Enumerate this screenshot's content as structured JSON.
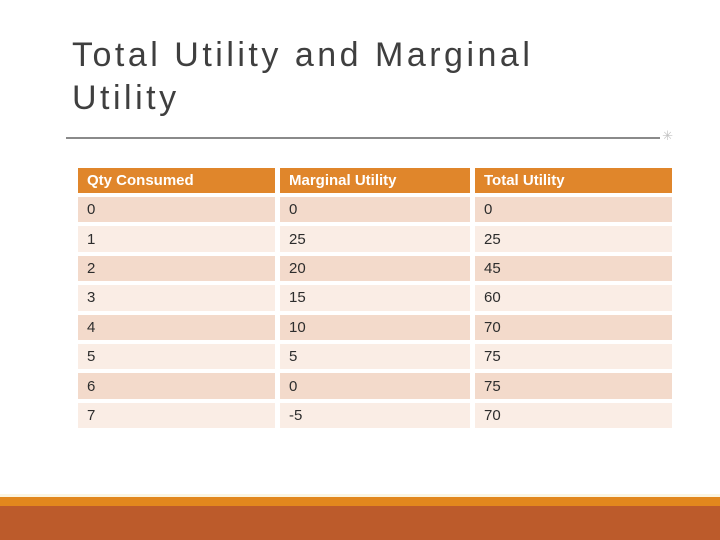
{
  "slide": {
    "title": "Total Utility and Marginal Utility"
  },
  "decorations": {
    "flourish": "✳"
  },
  "table": {
    "headers": [
      "Qty Consumed",
      "Marginal Utility",
      "Total Utility"
    ],
    "rows": [
      [
        "0",
        "0",
        "0"
      ],
      [
        "1",
        "25",
        "25"
      ],
      [
        "2",
        "20",
        "45"
      ],
      [
        "3",
        "15",
        "60"
      ],
      [
        "4",
        "10",
        "70"
      ],
      [
        "5",
        "5",
        "75"
      ],
      [
        "6",
        "0",
        "75"
      ],
      [
        "7",
        "-5",
        "70"
      ]
    ]
  },
  "colors": {
    "header_bg": "#e0862b",
    "row_dark": "#f3dacb",
    "row_light": "#faede5",
    "accent_orange": "#e2871d",
    "accent_rust": "#bc5b2b",
    "title_text": "#3f3f3f",
    "rule_gray": "#8a8a8a"
  }
}
